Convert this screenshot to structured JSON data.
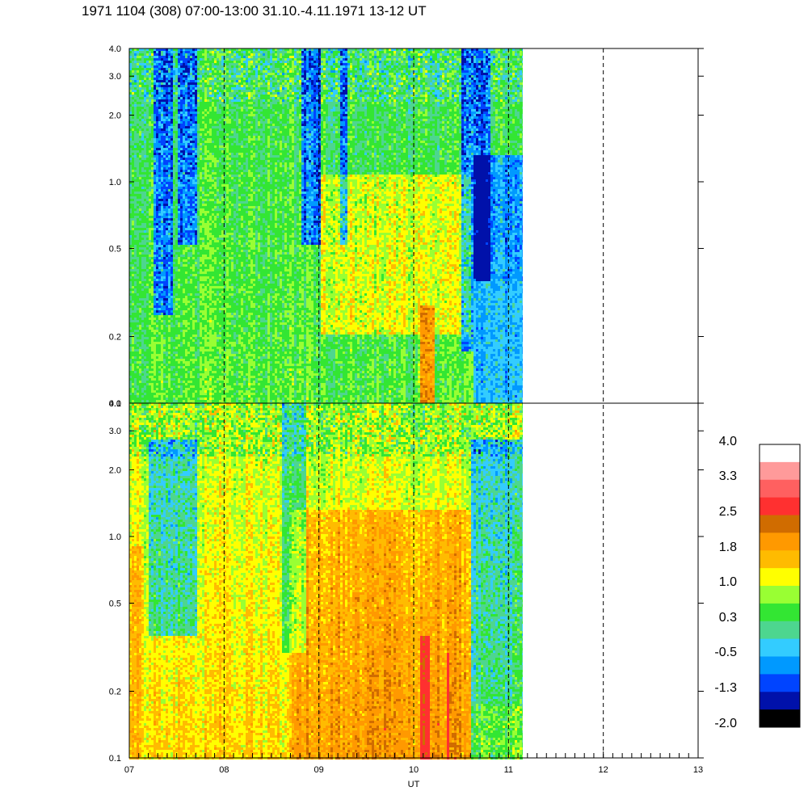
{
  "chart_data": {
    "type": "heatmap",
    "title": "1971 1104 (308) 07:00-13:00 31.10.-4.11.1971  13-12 UT",
    "xlabel": "UT",
    "x_ticks": [
      "07",
      "08",
      "09",
      "10",
      "11",
      "12",
      "13"
    ],
    "xlim": [
      7,
      13
    ],
    "data_end_hour": 11.15,
    "panels": [
      {
        "name": "upper",
        "y_scale": "log",
        "ylim": [
          0.1,
          4.0
        ],
        "y_ticks": [
          "0.1",
          "0.2",
          "0.5",
          "1.0",
          "2.0",
          "3.0",
          "4.0"
        ],
        "y_values": [
          0.1,
          0.2,
          0.5,
          1.0,
          2.0,
          3.0,
          4.0
        ]
      },
      {
        "name": "lower",
        "y_scale": "log",
        "ylim": [
          0.1,
          4.0
        ],
        "y_ticks": [
          "0.1",
          "0.2",
          "0.5",
          "1.0",
          "2.0",
          "3.0",
          "4.0"
        ],
        "y_values": [
          0.1,
          0.2,
          0.5,
          1.0,
          2.0,
          3.0,
          4.0
        ]
      }
    ],
    "vertical_dashed_lines_at": [
      8,
      9,
      10,
      11,
      12
    ],
    "colorbar": {
      "labels": [
        "4.0",
        "3.3",
        "2.5",
        "1.8",
        "1.0",
        "0.3",
        "-0.5",
        "-1.3",
        "-2.0"
      ],
      "colors_top_to_bottom": [
        "#ffffff",
        "#ff9a9a",
        "#ff6060",
        "#ff3030",
        "#d06c00",
        "#ff9900",
        "#ffbb00",
        "#ffff00",
        "#99ff33",
        "#33e633",
        "#4dd68f",
        "#33ccff",
        "#0099ff",
        "#0044ff",
        "#0011aa",
        "#000000"
      ]
    }
  }
}
